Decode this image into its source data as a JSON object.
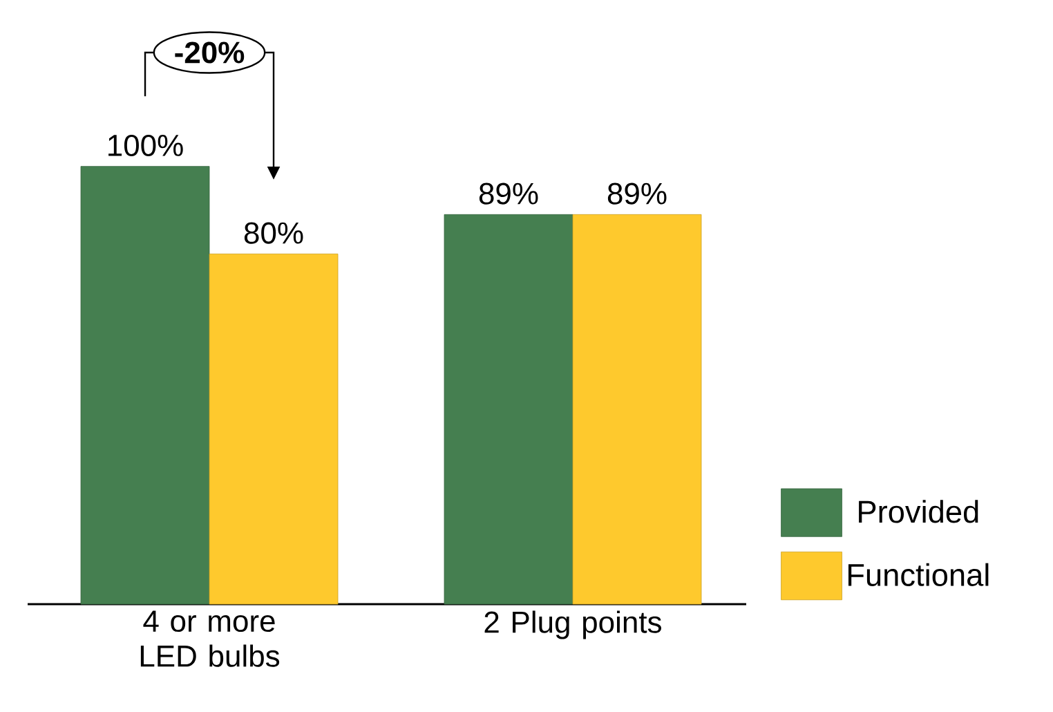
{
  "chart_data": {
    "type": "bar",
    "categories": [
      "4 or more LED bulbs",
      "2 Plug points"
    ],
    "series": [
      {
        "name": "Provided",
        "color": "#457f50",
        "values": [
          100,
          89
        ],
        "value_labels": [
          "100%",
          "89%"
        ]
      },
      {
        "name": "Functional",
        "color": "#fec92d",
        "values": [
          80,
          89
        ],
        "value_labels": [
          "80%",
          "89%"
        ]
      }
    ],
    "annotations": [
      "-20%"
    ],
    "legend": "right"
  }
}
